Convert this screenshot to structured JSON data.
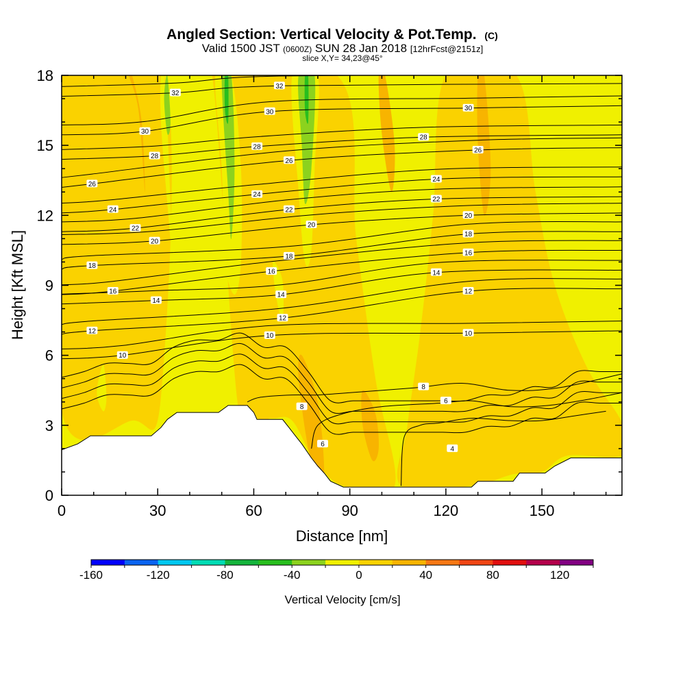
{
  "chart_data": {
    "type": "contour",
    "title": "Angled Section: Vertical Velocity & Pot.Temp.",
    "title_suffix": "(C)",
    "subtitle_parts": [
      "Valid 1500 JST ",
      "(0600Z)",
      " SUN 28 Jan 2018 ",
      "[12hrFcst@2151z]"
    ],
    "slice_text": "slice X,Y= 34,23@45°",
    "xlabel": "Distance [nm]",
    "ylabel": "Height [Kft MSL]",
    "xlim": [
      0,
      175
    ],
    "ylim": [
      0,
      18
    ],
    "x_ticks": [
      0,
      30,
      60,
      90,
      120,
      150
    ],
    "y_ticks": [
      0,
      3,
      6,
      9,
      12,
      15,
      18
    ],
    "colorbar": {
      "label": "Vertical Velocity [cm/s]",
      "range": [
        -160,
        140
      ],
      "step": 20,
      "tick_values": [
        -160,
        -120,
        -80,
        -40,
        0,
        40,
        80,
        120
      ],
      "colors": [
        "#0000ff",
        "#0a64f0",
        "#00c8f0",
        "#00dcb4",
        "#14b43c",
        "#28be1e",
        "#8cd21e",
        "#f0f000",
        "#fad200",
        "#f8b400",
        "#f87814",
        "#f04614",
        "#e10f0f",
        "#b4004b",
        "#820082"
      ]
    },
    "terrain_kft": [
      [
        0,
        1.95
      ],
      [
        5,
        2.2
      ],
      [
        9,
        2.55
      ],
      [
        14,
        2.55
      ],
      [
        28,
        2.55
      ],
      [
        31,
        2.9
      ],
      [
        33,
        3.25
      ],
      [
        36,
        3.55
      ],
      [
        49,
        3.55
      ],
      [
        52,
        3.85
      ],
      [
        58,
        3.85
      ],
      [
        60,
        3.55
      ],
      [
        61,
        3.25
      ],
      [
        69,
        3.25
      ],
      [
        71,
        2.9
      ],
      [
        73,
        2.55
      ],
      [
        75,
        2.2
      ],
      [
        78,
        1.6
      ],
      [
        80,
        1.25
      ],
      [
        82,
        0.95
      ],
      [
        84,
        0.6
      ],
      [
        88,
        0.35
      ],
      [
        128,
        0.35
      ],
      [
        130,
        0.6
      ],
      [
        141,
        0.6
      ],
      [
        143,
        0.95
      ],
      [
        151,
        0.95
      ],
      [
        154,
        1.25
      ],
      [
        159,
        1.6
      ],
      [
        175,
        1.6
      ]
    ],
    "velocity_regions": [
      {
        "label": "updraft",
        "color_value": 10,
        "points": [
          [
            0,
            3.6
          ],
          [
            22,
            3.2
          ],
          [
            31,
            4.2
          ],
          [
            32,
            18
          ],
          [
            0,
            18
          ]
        ]
      },
      {
        "label": "updraft",
        "color_value": 10,
        "points": [
          [
            40,
            18
          ],
          [
            47,
            18
          ],
          [
            55,
            3.9
          ],
          [
            61,
            3.3
          ],
          [
            66,
            3.3
          ],
          [
            72,
            3.2
          ],
          [
            79,
            1.5
          ],
          [
            88,
            0.4
          ],
          [
            104,
            0.4
          ],
          [
            98,
            5
          ],
          [
            92,
            11
          ],
          [
            86,
            18
          ]
        ]
      },
      {
        "label": "updraft",
        "color_value": 10,
        "points": [
          [
            62,
            18
          ],
          [
            72,
            18
          ],
          [
            75,
            11
          ],
          [
            68,
            5
          ],
          [
            62,
            4
          ]
        ]
      },
      {
        "label": "updraft",
        "color_value": 10,
        "points": [
          [
            106,
            0.4
          ],
          [
            128,
            0.4
          ],
          [
            141,
            0.9
          ],
          [
            150,
            1
          ],
          [
            158,
            1.7
          ],
          [
            175,
            1.7
          ],
          [
            175,
            3.1
          ],
          [
            164,
            5.5
          ],
          [
            154,
            9
          ],
          [
            148,
            13
          ],
          [
            142,
            18
          ],
          [
            120,
            18
          ],
          [
            116,
            12
          ],
          [
            112,
            7
          ],
          [
            108,
            3
          ]
        ]
      },
      {
        "label": "updraft",
        "color_value": 30,
        "points": [
          [
            22,
            18
          ],
          [
            25,
            16
          ],
          [
            26,
            13
          ],
          [
            24,
            16.5
          ],
          [
            21,
            18
          ]
        ]
      },
      {
        "label": "updraft",
        "color_value": 30,
        "points": [
          [
            75,
            6
          ],
          [
            80,
            4
          ],
          [
            82,
            1
          ],
          [
            80,
            0.5
          ],
          [
            77,
            2
          ],
          [
            74,
            5
          ]
        ]
      },
      {
        "label": "updraft",
        "color_value": 30,
        "points": [
          [
            94,
            4.5
          ],
          [
            98,
            3.5
          ],
          [
            99,
            2
          ],
          [
            97,
            1.5
          ],
          [
            94,
            3
          ]
        ]
      },
      {
        "label": "updraft",
        "color_value": 30,
        "points": [
          [
            101,
            18
          ],
          [
            104,
            15
          ],
          [
            103,
            13
          ],
          [
            100,
            15.5
          ],
          [
            99,
            18
          ]
        ]
      },
      {
        "label": "updraft",
        "color_value": 30,
        "points": [
          [
            132,
            18
          ],
          [
            134,
            14
          ],
          [
            132,
            12
          ],
          [
            130,
            15
          ],
          [
            130,
            18
          ]
        ]
      },
      {
        "label": "downdraft",
        "color_value": -10,
        "points": [
          [
            32,
            18
          ],
          [
            33,
            16
          ],
          [
            34,
            12.5
          ],
          [
            35,
            9.5
          ],
          [
            33,
            12.5
          ],
          [
            31,
            16
          ],
          [
            31,
            18
          ]
        ]
      },
      {
        "label": "downdraft",
        "color_value": -10,
        "points": [
          [
            48,
            18
          ],
          [
            53,
            18
          ],
          [
            56,
            14
          ],
          [
            56,
            10
          ],
          [
            54,
            8.6
          ],
          [
            51,
            10
          ],
          [
            50,
            14
          ]
        ]
      },
      {
        "label": "downdraft",
        "color_value": -10,
        "points": [
          [
            72,
            18
          ],
          [
            80,
            18
          ],
          [
            79,
            14
          ],
          [
            78,
            10.5
          ],
          [
            76,
            10
          ],
          [
            74,
            13
          ]
        ]
      },
      {
        "label": "downdraft",
        "color_value": -10,
        "points": [
          [
            66,
            10
          ],
          [
            69,
            9.2
          ],
          [
            69,
            7.5
          ],
          [
            67,
            8.5
          ]
        ]
      },
      {
        "label": "downdraft",
        "color_value": -10,
        "points": [
          [
            13,
            5.6
          ],
          [
            14,
            4.2
          ],
          [
            13,
            3.6
          ],
          [
            11,
            4.4
          ]
        ]
      },
      {
        "label": "downdraft",
        "color_value": -30,
        "points": [
          [
            33,
            18
          ],
          [
            34,
            16
          ],
          [
            33,
            15.5
          ],
          [
            32,
            17
          ]
        ]
      },
      {
        "label": "downdraft",
        "color_value": -30,
        "points": [
          [
            50,
            18
          ],
          [
            53,
            18
          ],
          [
            54,
            14
          ],
          [
            53,
            11
          ],
          [
            52,
            13
          ]
        ]
      },
      {
        "label": "downdraft",
        "color_value": -30,
        "points": [
          [
            74,
            18
          ],
          [
            79,
            18
          ],
          [
            78,
            14
          ],
          [
            76,
            12.5
          ],
          [
            75,
            15
          ]
        ]
      },
      {
        "label": "downdraft",
        "color_value": -50,
        "points": [
          [
            51,
            18
          ],
          [
            52,
            18
          ],
          [
            52,
            16
          ],
          [
            51,
            16.5
          ]
        ]
      },
      {
        "label": "downdraft",
        "color_value": -50,
        "points": [
          [
            76,
            18
          ],
          [
            77,
            18
          ],
          [
            77,
            16
          ],
          [
            76,
            16.5
          ]
        ]
      }
    ],
    "pot_temp_contours": [
      {
        "value": 4,
        "points": [
          [
            106,
            0.4
          ],
          [
            107,
            2.5
          ],
          [
            112,
            3.0
          ],
          [
            118,
            3.1
          ],
          [
            128,
            3.3
          ],
          [
            140,
            3.2
          ],
          [
            150,
            3.2
          ],
          [
            160,
            3.4
          ],
          [
            170,
            3.6
          ]
        ],
        "label_at": [
          122,
          2.0
        ]
      },
      {
        "value": 6,
        "points": [
          [
            78,
            2
          ],
          [
            80,
            3.0
          ],
          [
            88,
            3.5
          ],
          [
            100,
            3.8
          ],
          [
            118,
            3.95
          ],
          [
            128,
            4.05
          ],
          [
            140,
            3.8
          ],
          [
            152,
            3.85
          ],
          [
            164,
            4.1
          ],
          [
            175,
            4.4
          ]
        ],
        "label_at": [
          120,
          4.05
        ]
      },
      {
        "value": 8,
        "points": [
          [
            58,
            4
          ],
          [
            62,
            4.2
          ],
          [
            72,
            4.3
          ],
          [
            80,
            4.3
          ],
          [
            90,
            4.4
          ],
          [
            110,
            4.6
          ],
          [
            125,
            4.8
          ],
          [
            140,
            4.5
          ],
          [
            155,
            4.6
          ],
          [
            175,
            5.2
          ]
        ],
        "label_at": [
          113,
          4.6
        ]
      }
    ],
    "contour_labels": [
      {
        "value": 32,
        "x": 35.5,
        "y": 17.25
      },
      {
        "value": 32,
        "x": 68,
        "y": 17.55
      },
      {
        "value": 30,
        "x": 26,
        "y": 15.6
      },
      {
        "value": 30,
        "x": 65,
        "y": 16.45
      },
      {
        "value": 30,
        "x": 127,
        "y": 16.6
      },
      {
        "value": 28,
        "x": 29,
        "y": 14.55
      },
      {
        "value": 28,
        "x": 61,
        "y": 14.95
      },
      {
        "value": 28,
        "x": 113,
        "y": 15.35
      },
      {
        "value": 26,
        "x": 9.5,
        "y": 13.35
      },
      {
        "value": 26,
        "x": 71,
        "y": 14.35
      },
      {
        "value": 26,
        "x": 130,
        "y": 14.8
      },
      {
        "value": 24,
        "x": 16,
        "y": 12.25
      },
      {
        "value": 24,
        "x": 61,
        "y": 12.9
      },
      {
        "value": 24,
        "x": 117,
        "y": 13.55
      },
      {
        "value": 22,
        "x": 23,
        "y": 11.45
      },
      {
        "value": 22,
        "x": 71,
        "y": 12.25
      },
      {
        "value": 22,
        "x": 117,
        "y": 12.7
      },
      {
        "value": 20,
        "x": 29,
        "y": 10.9
      },
      {
        "value": 20,
        "x": 78,
        "y": 11.6
      },
      {
        "value": 20,
        "x": 127,
        "y": 12.0
      },
      {
        "value": 18,
        "x": 9.5,
        "y": 9.85
      },
      {
        "value": 18,
        "x": 71,
        "y": 10.25
      },
      {
        "value": 18,
        "x": 127,
        "y": 11.2
      },
      {
        "value": 16,
        "x": 16,
        "y": 8.75
      },
      {
        "value": 16,
        "x": 65.5,
        "y": 9.6
      },
      {
        "value": 16,
        "x": 127,
        "y": 10.4
      },
      {
        "value": 14,
        "x": 29.5,
        "y": 8.35
      },
      {
        "value": 14,
        "x": 68.5,
        "y": 8.6
      },
      {
        "value": 14,
        "x": 117,
        "y": 9.55
      },
      {
        "value": 12,
        "x": 9.5,
        "y": 7.05
      },
      {
        "value": 12,
        "x": 69,
        "y": 7.6
      },
      {
        "value": 12,
        "x": 127,
        "y": 8.75
      },
      {
        "value": 10,
        "x": 19,
        "y": 6.0
      },
      {
        "value": 10,
        "x": 65,
        "y": 6.85
      },
      {
        "value": 10,
        "x": 127,
        "y": 6.95
      },
      {
        "value": 8,
        "x": 113,
        "y": 4.65
      },
      {
        "value": 8,
        "x": 75,
        "y": 3.8
      },
      {
        "value": 6,
        "x": 120,
        "y": 4.05
      },
      {
        "value": 6,
        "x": 81.5,
        "y": 2.2
      },
      {
        "value": 4,
        "x": 122,
        "y": 2.0
      }
    ]
  }
}
